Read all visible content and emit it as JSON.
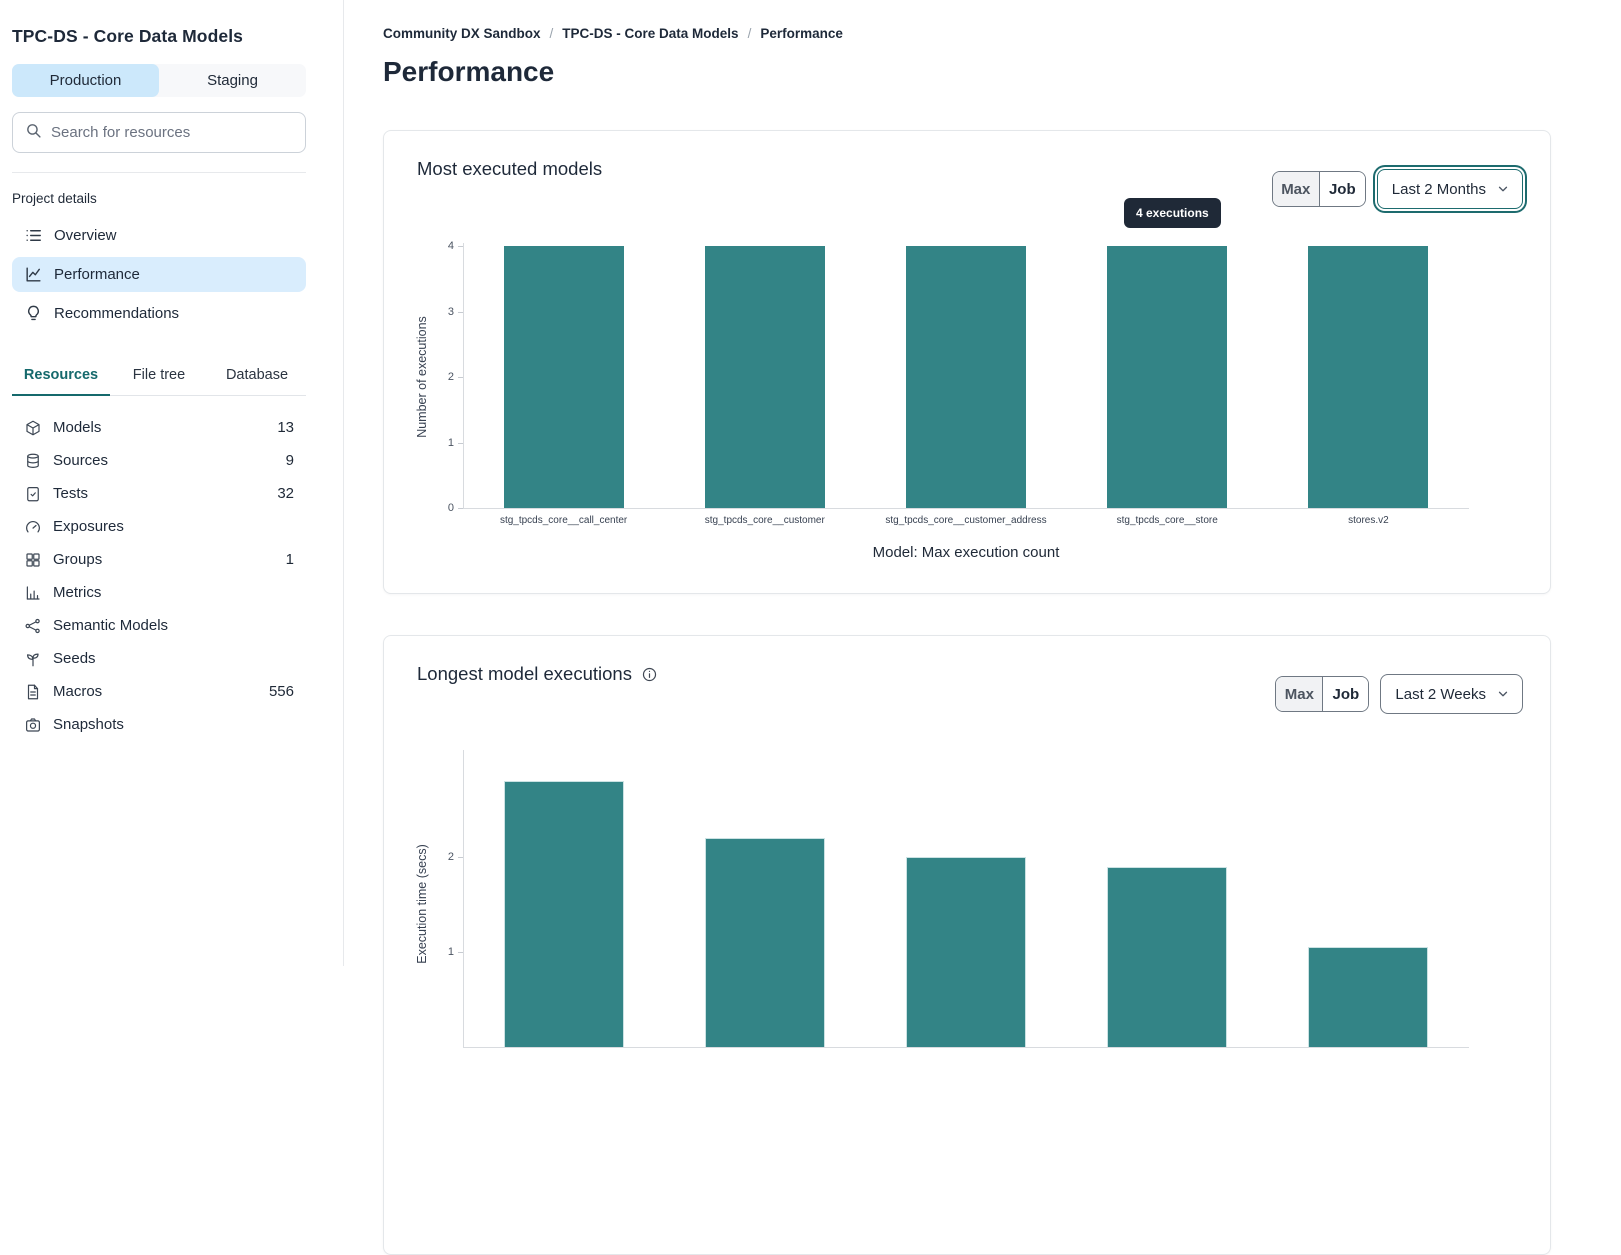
{
  "sidebar": {
    "title": "TPC-DS - Core Data Models",
    "env_tabs": [
      {
        "label": "Production",
        "active": true
      },
      {
        "label": "Staging",
        "active": false
      }
    ],
    "search": {
      "placeholder": "Search for resources"
    },
    "project_details": {
      "label": "Project details",
      "items": [
        {
          "label": "Overview",
          "icon": "list-icon",
          "active": false
        },
        {
          "label": "Performance",
          "icon": "line-chart-icon",
          "active": true
        },
        {
          "label": "Recommendations",
          "icon": "lightbulb-icon",
          "active": false
        }
      ]
    },
    "resource_tabs": [
      {
        "label": "Resources",
        "active": true
      },
      {
        "label": "File tree",
        "active": false
      },
      {
        "label": "Database",
        "active": false
      }
    ],
    "resources": [
      {
        "label": "Models",
        "count": "13",
        "icon": "cube-icon"
      },
      {
        "label": "Sources",
        "count": "9",
        "icon": "database-icon"
      },
      {
        "label": "Tests",
        "count": "32",
        "icon": "clipboard-check-icon"
      },
      {
        "label": "Exposures",
        "count": "",
        "icon": "gauge-icon"
      },
      {
        "label": "Groups",
        "count": "1",
        "icon": "grid-icon"
      },
      {
        "label": "Metrics",
        "count": "",
        "icon": "bar-chart-icon"
      },
      {
        "label": "Semantic Models",
        "count": "",
        "icon": "share-nodes-icon"
      },
      {
        "label": "Seeds",
        "count": "",
        "icon": "seedling-icon"
      },
      {
        "label": "Macros",
        "count": "556",
        "icon": "file-text-icon"
      },
      {
        "label": "Snapshots",
        "count": "",
        "icon": "camera-icon"
      }
    ]
  },
  "breadcrumb": {
    "items": [
      "Community DX Sandbox",
      "TPC-DS - Core Data Models",
      "Performance"
    ],
    "separator": "/"
  },
  "page_title": "Performance",
  "colors": {
    "accent_teal": "#338486",
    "selected_blue": "#d9edfd",
    "env_tab_blue": "#cce8fb",
    "active_tab_teal": "#15696c",
    "tooltip_bg": "#1f2937"
  },
  "chart_data": [
    {
      "type": "bar",
      "title": "Most executed models",
      "categories": [
        "stg_tpcds_core__call_center",
        "stg_tpcds_core__customer",
        "stg_tpcds_core__customer_address",
        "stg_tpcds_core__store",
        "stores.v2"
      ],
      "values": [
        4,
        4,
        4,
        4,
        4
      ],
      "xlabel": "Model: Max execution count",
      "ylabel": "Number of executions",
      "ylim": [
        0,
        4
      ],
      "yticks": [
        0,
        1,
        2,
        3,
        4
      ],
      "bar_color": "#338486",
      "tooltip": {
        "label": "4 executions",
        "bar_index": 3
      },
      "controls": {
        "toggle": [
          "Max",
          "Job"
        ],
        "toggle_active": "Max",
        "select": "Last 2 Months",
        "select_focused": true
      }
    },
    {
      "type": "bar",
      "title": "Longest model executions",
      "info_icon": true,
      "categories": [
        "",
        "",
        "",
        "",
        ""
      ],
      "values": [
        2.8,
        2.2,
        2.0,
        1.9,
        1.05
      ],
      "xlabel": "",
      "ylabel": "Execution time (secs)",
      "ylim": [
        0,
        3
      ],
      "yticks": [
        1,
        2
      ],
      "bar_color": "#338486",
      "controls": {
        "toggle": [
          "Max",
          "Job"
        ],
        "toggle_active": "Max",
        "select": "Last 2 Weeks",
        "select_focused": false
      }
    }
  ]
}
